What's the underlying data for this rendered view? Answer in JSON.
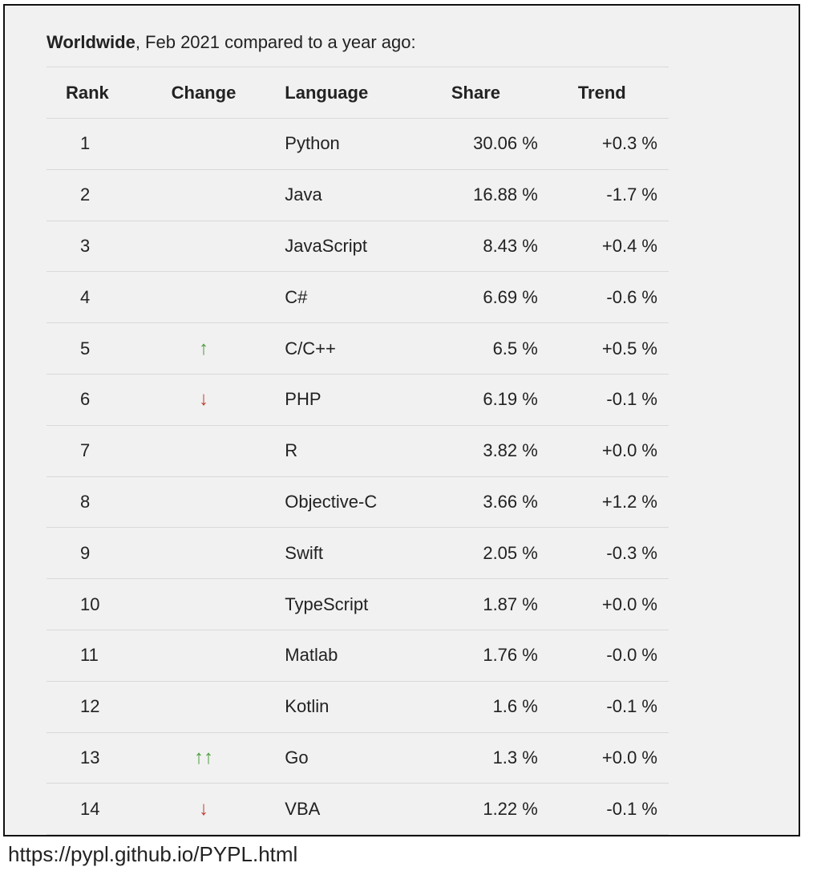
{
  "heading": {
    "bold": "Worldwide",
    "rest": ", Feb 2021 compared to a year ago:"
  },
  "columns": [
    "Rank",
    "Change",
    "Language",
    "Share",
    "Trend"
  ],
  "colors": {
    "up": "#4a9c3a",
    "down": "#c0392b"
  },
  "rows": [
    {
      "rank": "1",
      "change": "",
      "language": "Python",
      "share": "30.06 %",
      "trend": "+0.3 %"
    },
    {
      "rank": "2",
      "change": "",
      "language": "Java",
      "share": "16.88 %",
      "trend": "-1.7 %"
    },
    {
      "rank": "3",
      "change": "",
      "language": "JavaScript",
      "share": "8.43 %",
      "trend": "+0.4 %"
    },
    {
      "rank": "4",
      "change": "",
      "language": "C#",
      "share": "6.69 %",
      "trend": "-0.6 %"
    },
    {
      "rank": "5",
      "change": "up",
      "language": "C/C++",
      "share": "6.5 %",
      "trend": "+0.5 %"
    },
    {
      "rank": "6",
      "change": "down",
      "language": "PHP",
      "share": "6.19 %",
      "trend": "-0.1 %"
    },
    {
      "rank": "7",
      "change": "",
      "language": "R",
      "share": "3.82 %",
      "trend": "+0.0 %"
    },
    {
      "rank": "8",
      "change": "",
      "language": "Objective-C",
      "share": "3.66 %",
      "trend": "+1.2 %"
    },
    {
      "rank": "9",
      "change": "",
      "language": "Swift",
      "share": "2.05 %",
      "trend": "-0.3 %"
    },
    {
      "rank": "10",
      "change": "",
      "language": "TypeScript",
      "share": "1.87 %",
      "trend": "+0.0 %"
    },
    {
      "rank": "11",
      "change": "",
      "language": "Matlab",
      "share": "1.76 %",
      "trend": "-0.0 %"
    },
    {
      "rank": "12",
      "change": "",
      "language": "Kotlin",
      "share": "1.6 %",
      "trend": "-0.1 %"
    },
    {
      "rank": "13",
      "change": "up-up",
      "language": "Go",
      "share": "1.3 %",
      "trend": "+0.0 %"
    },
    {
      "rank": "14",
      "change": "down",
      "language": "VBA",
      "share": "1.22 %",
      "trend": "-0.1 %"
    }
  ],
  "source": "https://pypl.github.io/PYPL.html"
}
